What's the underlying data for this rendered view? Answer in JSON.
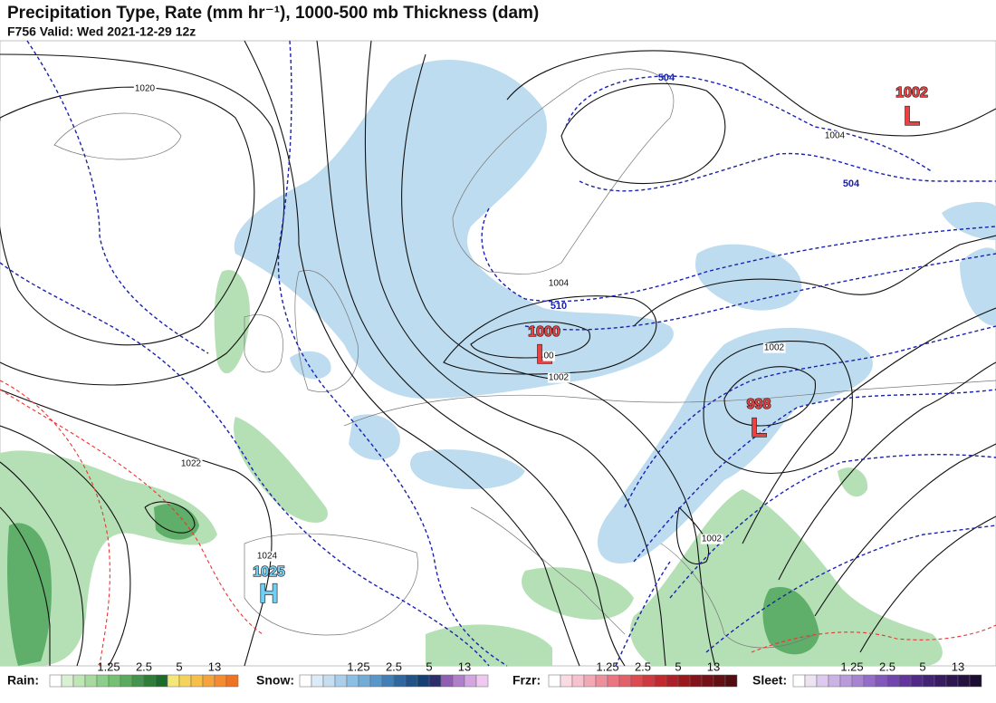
{
  "header": {
    "title": "Precipitation Type, Rate (mm hr⁻¹), 1000-500 mb Thickness (dam)",
    "subtitle": "F756 Valid: Wed 2021-12-29 12z"
  },
  "map": {
    "pressure_centers": [
      {
        "value": "1002",
        "symbol": "L"
      },
      {
        "value": "1000",
        "symbol": "L"
      },
      {
        "value": "998",
        "symbol": "L"
      },
      {
        "value": "1025",
        "symbol": "H"
      }
    ],
    "isobar_labels": [
      "1020",
      "1022",
      "1024",
      "1004",
      "1004",
      "1002",
      "1002",
      "1002",
      "00"
    ],
    "thickness_labels": [
      "504",
      "504",
      "510"
    ]
  },
  "legend": [
    {
      "name": "Rain:",
      "ticks": [
        "1.25",
        "2.5",
        "5",
        "13"
      ],
      "colors": [
        "#ffffff",
        "#d9f0d3",
        "#bfe6b5",
        "#a6dba0",
        "#8ccf88",
        "#72c272",
        "#5aab5e",
        "#43944c",
        "#2e7d3a",
        "#1b6b2c",
        "#f5e678",
        "#f5d35a",
        "#f5bf4a",
        "#f5a33d",
        "#f58b30",
        "#f07324"
      ]
    },
    {
      "name": "Snow:",
      "ticks": [
        "1.25",
        "2.5",
        "5",
        "13"
      ],
      "colors": [
        "#ffffff",
        "#dcebf7",
        "#c6def2",
        "#a9cfec",
        "#8dbfe4",
        "#72acd9",
        "#5897c9",
        "#4180b6",
        "#2f68a0",
        "#20538a",
        "#133f73",
        "#2a2f6b",
        "#8f5fb3",
        "#b07fc9",
        "#d2a6de",
        "#efc9ef"
      ]
    },
    {
      "name": "Frzr:",
      "ticks": [
        "1.25",
        "2.5",
        "5",
        "13"
      ],
      "colors": [
        "#ffffff",
        "#fadbe2",
        "#f7c2cd",
        "#f3a8b5",
        "#ef8f9c",
        "#ea7683",
        "#e45f68",
        "#dc4a52",
        "#d2383f",
        "#c22a31",
        "#ae2027",
        "#99191f",
        "#85141a",
        "#731217",
        "#621014",
        "#520d11"
      ]
    },
    {
      "name": "Sleet:",
      "ticks": [
        "1.25",
        "2.5",
        "5",
        "13"
      ],
      "colors": [
        "#ffffff",
        "#ece3f5",
        "#dccbee",
        "#cbb3e6",
        "#b99bdd",
        "#a784d3",
        "#956dc8",
        "#8358bc",
        "#7145ad",
        "#60359c",
        "#512a89",
        "#442275",
        "#381c62",
        "#2d1750",
        "#231240",
        "#1a0d31"
      ]
    }
  ]
}
